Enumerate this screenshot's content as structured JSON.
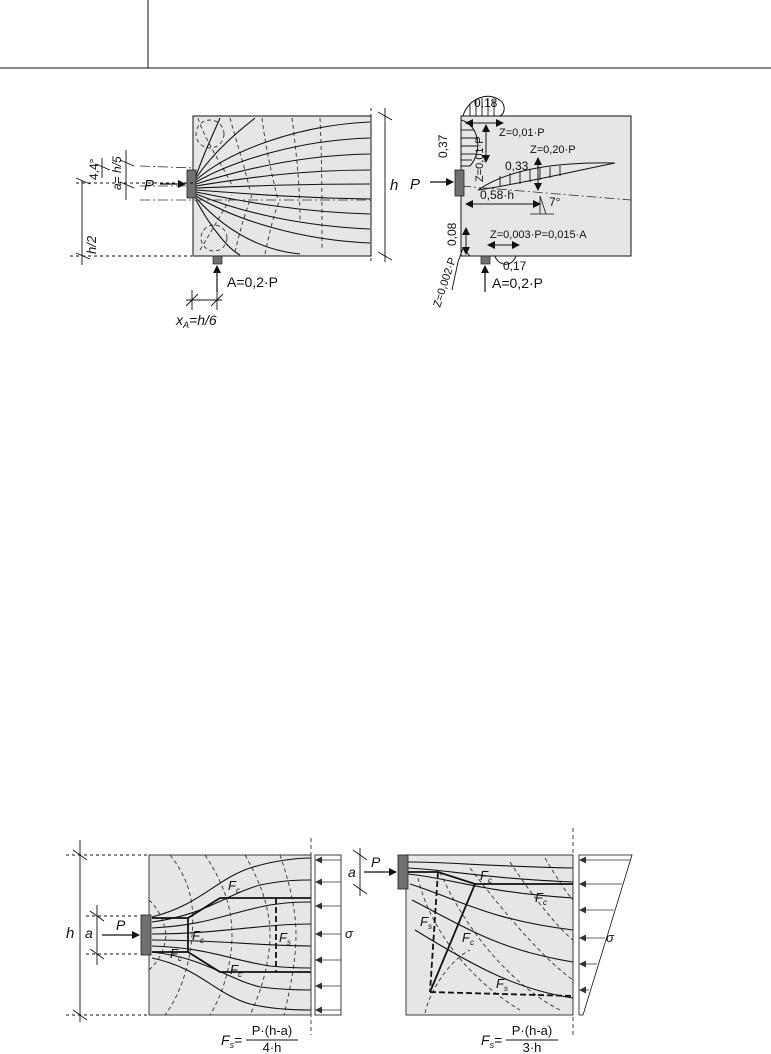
{
  "colors": {
    "panel": "#e6e6e6",
    "plate": "#707070",
    "line": "#111111"
  },
  "figure_top_left": {
    "angle_label": "4,4°",
    "a_label": "a= h/5",
    "half_h_label": "h/2",
    "h_label": "h",
    "P_label": "P",
    "support_label": "A=0,2·P",
    "xa_label": "x",
    "xa_sub": "A",
    "xa_value": "=h/6"
  },
  "figure_top_right": {
    "P_label": "P",
    "val_018": "0,18",
    "val_037": "0,37",
    "z_top": "Z=0,01·P",
    "z_vert": "Z=0,01·P",
    "z_020": "Z=0,20·P",
    "val_033": "0,33",
    "dist_058": "0,58·h",
    "angle_7": "7°",
    "val_008": "0,08",
    "z_0003": "Z=0,003·P=0,015·A",
    "z_0002": "Z=0,002·P",
    "val_017": "0,17",
    "support_label": "A=0,2·P"
  },
  "figure_bottom_left": {
    "h_label": "h",
    "a_label": "a",
    "P_label": "P",
    "Fc": "F",
    "Fc_sub": "c",
    "Fs": "F",
    "Fs_sub": "s",
    "sigma": "σ",
    "formula_lhs": "F",
    "formula_lhs_sub": "s",
    "formula_eq": "=",
    "formula_num": "P·(h-a)",
    "formula_den": "4·h"
  },
  "figure_bottom_right": {
    "a_label": "a",
    "P_label": "P",
    "Fc": "F",
    "Fc_sub": "c",
    "Fs": "F",
    "Fs_sub": "s",
    "sigma": "σ",
    "formula_lhs": "F",
    "formula_lhs_sub": "s",
    "formula_eq": "=",
    "formula_num": "P·(h-a)",
    "formula_den": "3·h"
  }
}
